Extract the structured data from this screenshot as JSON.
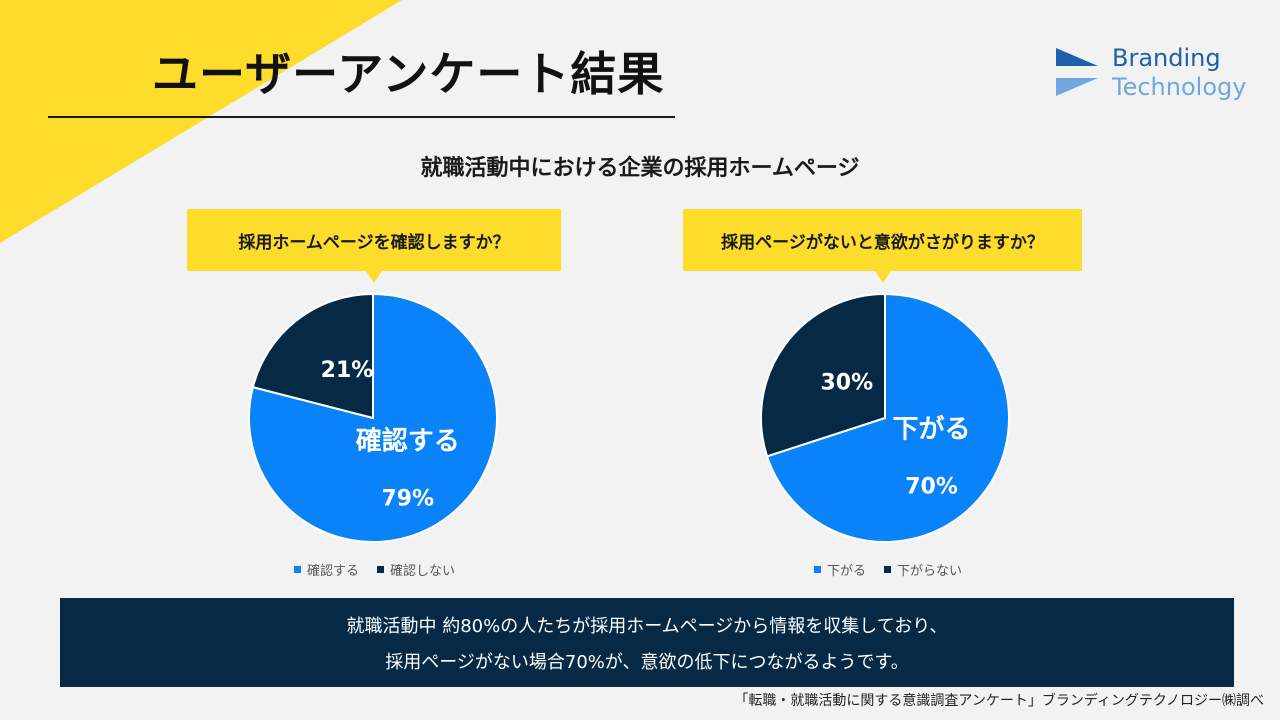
{
  "page": {
    "title": "ユーザーアンケート結果",
    "subtitle": "就職活動中における企業の採用ホームページ",
    "logo": {
      "line1": "Branding",
      "line2": "Technology"
    },
    "summary": [
      "就職活動中 約80%の人たちが採用ホームページから情報を収集しており、",
      "採用ページがない場合70%が、意欲の低下につながるようです。"
    ],
    "source": "「転職・就職活動に関する意識調査アンケート」ブランディングテクノロジー㈱調べ",
    "colors": {
      "accent_yellow": "#fddc2b",
      "primary_blue": "#0a82f8",
      "dark_navy": "#062a45",
      "logo_dark": "#1f5fae",
      "logo_light": "#6fa8dc"
    }
  },
  "chart_data": [
    {
      "type": "pie",
      "question": "採用ホームページを確認しますか？",
      "slices": [
        {
          "label": "確認する",
          "value": 79,
          "color": "#0a82f8",
          "display_label": "確認する",
          "display_value": "79%"
        },
        {
          "label": "確認しない",
          "value": 21,
          "color": "#062a45",
          "display_label": "",
          "display_value": "21%"
        }
      ],
      "legend": [
        "確認する",
        "確認しない"
      ],
      "legend_position": "bottom"
    },
    {
      "type": "pie",
      "question": "採用ページがないと意欲がさがりますか？",
      "slices": [
        {
          "label": "下がる",
          "value": 70,
          "color": "#0a82f8",
          "display_label": "下がる",
          "display_value": "70%"
        },
        {
          "label": "下がらない",
          "value": 30,
          "color": "#062a45",
          "display_label": "",
          "display_value": "30%"
        }
      ],
      "legend": [
        "下がる",
        "下がらない"
      ],
      "legend_position": "bottom"
    }
  ]
}
